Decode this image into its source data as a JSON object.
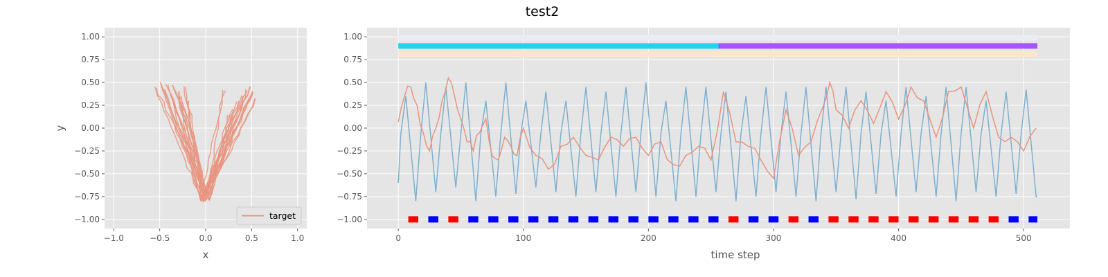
{
  "figure": {
    "title": "test2"
  },
  "colors": {
    "background": "#e5e5e5",
    "grid": "#ffffff",
    "target": "#e8947f",
    "signal_blue": "#7fb0cf",
    "bar_cyan": "#22d3ee",
    "bar_purple": "#a855f7",
    "bar_peach": "#fde6cc",
    "bar_lavender": "#ececf6",
    "marker_blue": "#0000ff",
    "marker_red": "#ff0000"
  },
  "chart_data": [
    {
      "type": "line",
      "title": "",
      "xlabel": "x",
      "ylabel": "y",
      "xlim": [
        -1.1,
        1.1
      ],
      "ylim": [
        -1.1,
        1.1
      ],
      "xticks": [
        -1.0,
        -0.5,
        0.0,
        0.5,
        1.0
      ],
      "xtick_labels": [
        "−1.0",
        "−0.5",
        "0.0",
        "0.5",
        "1.0"
      ],
      "yticks": [
        -1.0,
        -0.75,
        -0.5,
        -0.25,
        0.0,
        0.25,
        0.5,
        0.75,
        1.0
      ],
      "ytick_labels": [
        "−1.00",
        "−0.75",
        "−0.50",
        "−0.25",
        "0.00",
        "0.25",
        "0.50",
        "0.75",
        "1.00"
      ],
      "grid": true,
      "legend": {
        "position": "lower-right",
        "entries": [
          "target"
        ]
      },
      "series": [
        {
          "name": "target",
          "description": "bundle of V-shaped trajectories",
          "left_arm_tops_x": [
            -0.55,
            -0.5,
            -0.45,
            -0.42,
            -0.38,
            -0.35,
            -0.3,
            -0.27,
            -0.23,
            -0.19
          ],
          "left_arm_tops_y": [
            0.45,
            0.5,
            0.42,
            0.47,
            0.38,
            0.48,
            0.4,
            0.35,
            0.45,
            0.3
          ],
          "right_arm_tops_x": [
            0.2,
            0.25,
            0.3,
            0.35,
            0.4,
            0.45,
            0.48,
            0.5,
            0.52,
            0.55
          ],
          "right_arm_tops_y": [
            0.42,
            0.15,
            0.2,
            0.3,
            0.35,
            0.42,
            0.45,
            0.38,
            0.4,
            0.32
          ],
          "bottom_x": [
            -0.05,
            -0.03,
            -0.01,
            0.0,
            0.02,
            0.04
          ],
          "bottom_y": [
            -0.78,
            -0.8,
            -0.75,
            -0.79,
            -0.72,
            -0.78
          ]
        }
      ]
    },
    {
      "type": "line",
      "title": "",
      "xlabel": "time step",
      "ylabel": "",
      "xlim": [
        -25,
        537
      ],
      "ylim": [
        -1.1,
        1.1
      ],
      "xticks": [
        0,
        100,
        200,
        300,
        400,
        500
      ],
      "xtick_labels": [
        "0",
        "100",
        "200",
        "300",
        "400",
        "500"
      ],
      "yticks": [
        -1.0,
        -0.75,
        -0.5,
        -0.25,
        0.0,
        0.25,
        0.5,
        0.75,
        1.0
      ],
      "ytick_labels": [
        "−1.00",
        "−0.75",
        "−0.50",
        "−0.25",
        "0.00",
        "0.25",
        "0.50",
        "0.75",
        "1.00"
      ],
      "grid": true,
      "n_steps": 512,
      "series": [
        {
          "color_key": "signal_blue",
          "description": "fast oscillation, period ~16 steps",
          "period": 16,
          "start_value": -0.6,
          "peak_values": [
            0.35,
            0.5,
            0.45,
            0.5,
            0.3,
            0.5,
            0.3,
            0.4,
            0.3,
            0.45,
            0.4,
            0.45,
            0.5,
            0.3,
            0.45,
            0.45,
            0.4,
            0.35,
            0.45,
            0.4,
            0.45,
            0.45,
            0.45,
            0.4,
            0.3,
            0.45,
            0.35,
            0.45,
            0.45,
            0.3,
            0.4,
            0.42
          ],
          "trough_values": [
            -0.8,
            -0.7,
            -0.65,
            -0.8,
            -0.75,
            -0.72,
            -0.65,
            -0.7,
            -0.75,
            -0.7,
            -0.75,
            -0.7,
            -0.75,
            -0.8,
            -0.75,
            -0.7,
            -0.8,
            -0.75,
            -0.7,
            -0.75,
            -0.8,
            -0.7,
            -0.78,
            -0.72,
            -0.75,
            -0.7,
            -0.75,
            -0.8,
            -0.7,
            -0.75,
            -0.72,
            -0.75
          ],
          "end_value": -0.75
        },
        {
          "color_key": "target",
          "description": "slower, irregular oscillation",
          "x": [
            0,
            5,
            10,
            15,
            20,
            25,
            30,
            35,
            40,
            45,
            50,
            55,
            60,
            65,
            70,
            75,
            80,
            85,
            90,
            95,
            100,
            110,
            120,
            130,
            140,
            150,
            160,
            170,
            180,
            190,
            200,
            210,
            220,
            230,
            240,
            250,
            260,
            270,
            280,
            290,
            300,
            310,
            320,
            330,
            340,
            345,
            350,
            360,
            370,
            380,
            390,
            400,
            410,
            420,
            430,
            440,
            450,
            460,
            470,
            480,
            490,
            500,
            510
          ],
          "y": [
            0.07,
            0.35,
            0.45,
            0.25,
            -0.05,
            -0.25,
            0.0,
            0.3,
            0.55,
            0.35,
            0.1,
            -0.15,
            -0.25,
            -0.05,
            0.1,
            -0.3,
            -0.35,
            -0.1,
            -0.2,
            -0.3,
            0.0,
            -0.3,
            -0.45,
            -0.2,
            -0.1,
            -0.3,
            -0.35,
            -0.1,
            -0.2,
            -0.1,
            -0.3,
            -0.15,
            -0.4,
            -0.3,
            -0.2,
            -0.35,
            0.4,
            -0.15,
            -0.2,
            -0.35,
            -0.55,
            0.2,
            -0.3,
            -0.15,
            0.25,
            0.5,
            0.2,
            0.0,
            0.3,
            0.05,
            0.4,
            0.1,
            0.45,
            0.3,
            -0.1,
            0.4,
            0.45,
            0.0,
            0.4,
            -0.1,
            -0.1,
            -0.25,
            0.0
          ]
        }
      ],
      "segment_bars": [
        {
          "y": 0.9,
          "start": 0,
          "end": 256,
          "color_key": "bar_cyan"
        },
        {
          "y": 0.9,
          "start": 256,
          "end": 511,
          "color_key": "bar_purple"
        },
        {
          "y": 0.81,
          "start": 0,
          "end": 511,
          "color_key": "bar_peach"
        },
        {
          "y": 0.99,
          "start": 0,
          "end": 511,
          "color_key": "bar_lavender"
        }
      ],
      "markers": {
        "y": -1.0,
        "starts": [
          8,
          24,
          40,
          56,
          72,
          88,
          104,
          120,
          136,
          152,
          168,
          184,
          200,
          216,
          232,
          248,
          264,
          280,
          296,
          312,
          328,
          344,
          360,
          376,
          392,
          408,
          424,
          440,
          456,
          472,
          488,
          504
        ],
        "length": 8,
        "colors": [
          "marker_red",
          "marker_blue",
          "marker_red",
          "marker_blue",
          "marker_blue",
          "marker_blue",
          "marker_blue",
          "marker_blue",
          "marker_blue",
          "marker_blue",
          "marker_blue",
          "marker_blue",
          "marker_blue",
          "marker_blue",
          "marker_blue",
          "marker_blue",
          "marker_red",
          "marker_blue",
          "marker_blue",
          "marker_red",
          "marker_blue",
          "marker_red",
          "marker_red",
          "marker_red",
          "marker_red",
          "marker_red",
          "marker_red",
          "marker_red",
          "marker_red",
          "marker_red",
          "marker_blue",
          "marker_blue"
        ]
      }
    }
  ]
}
